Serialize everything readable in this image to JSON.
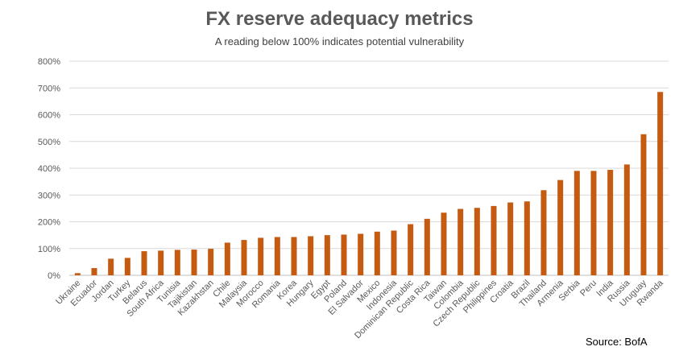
{
  "chart_data": {
    "type": "bar",
    "title": "FX reserve adequacy metrics",
    "subtitle": "A reading below 100% indicates potential vulnerability",
    "source": "Source: BofA",
    "xlabel": "",
    "ylabel": "",
    "ylim": [
      0,
      800
    ],
    "yticks": [
      "0%",
      "100%",
      "200%",
      "300%",
      "400%",
      "500%",
      "600%",
      "700%",
      "800%"
    ],
    "yticks_values": [
      0,
      100,
      200,
      300,
      400,
      500,
      600,
      700,
      800
    ],
    "grid": true,
    "bar_color": "#C55A11",
    "categories": [
      "Ukraine",
      "Ecuador",
      "Jordan",
      "Turkey",
      "Belarus",
      "South Africa",
      "Tunisia",
      "Tajikistan",
      "Kazakhstan",
      "Chile",
      "Malaysia",
      "Morocco",
      "Romania",
      "Korea",
      "Hungary",
      "Egypt",
      "Poland",
      "El Salvador",
      "Mexico",
      "Indonesia",
      "Dominican Republic",
      "Costa Rica",
      "Taiwan",
      "Colombia",
      "Czech Republic",
      "Philippines",
      "Croatia",
      "Brazil",
      "Thailand",
      "Armenia",
      "Serbia",
      "Peru",
      "India",
      "Russia",
      "Uruguay",
      "Rwanda"
    ],
    "values": [
      8,
      27,
      62,
      65,
      90,
      92,
      95,
      96,
      99,
      122,
      132,
      140,
      143,
      143,
      146,
      150,
      152,
      155,
      163,
      167,
      191,
      211,
      234,
      248,
      252,
      259,
      272,
      276,
      318,
      356,
      390,
      390,
      394,
      414,
      527,
      685
    ]
  }
}
